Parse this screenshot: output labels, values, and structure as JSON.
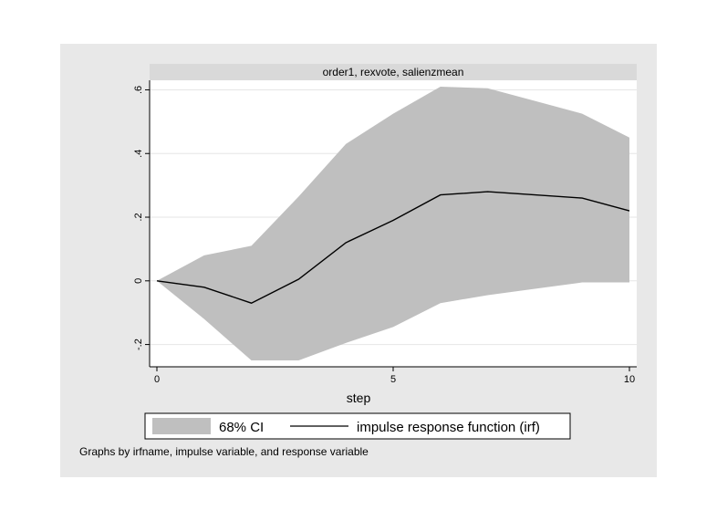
{
  "chart_data": {
    "type": "area",
    "panel_title": "order1, rexvote, salienzmean",
    "xlabel": "step",
    "ylabel": "",
    "xlim": [
      0,
      10
    ],
    "ylim": [
      -0.27,
      0.63
    ],
    "x_ticks": [
      0,
      5,
      10
    ],
    "x_tick_labels": [
      "0",
      "5",
      "10"
    ],
    "y_ticks": [
      -0.2,
      0,
      0.2,
      0.4,
      0.6
    ],
    "y_tick_labels": [
      "-.2",
      "0",
      ".2",
      ".4",
      ".6"
    ],
    "grid": "horizontal",
    "legend_position": "bottom",
    "x": [
      0,
      1,
      2,
      3,
      4,
      5,
      6,
      7,
      8,
      9,
      10
    ],
    "series": [
      {
        "name": "68% CI",
        "kind": "band",
        "color": "#bfbfbf",
        "lower": [
          0,
          -0.12,
          -0.25,
          -0.25,
          -0.195,
          -0.145,
          -0.07,
          -0.045,
          -0.025,
          -0.005,
          -0.005
        ],
        "upper": [
          0,
          0.08,
          0.11,
          0.265,
          0.43,
          0.525,
          0.61,
          0.605,
          0.565,
          0.525,
          0.45
        ]
      },
      {
        "name": "impulse response function (irf)",
        "kind": "line",
        "color": "#000000",
        "values": [
          0,
          -0.02,
          -0.07,
          0.005,
          0.12,
          0.19,
          0.27,
          0.28,
          0.27,
          0.26,
          0.22
        ]
      }
    ],
    "note": "Graphs by irfname, impulse variable, and response variable"
  },
  "colors": {
    "outer_background": "#e8e8e8",
    "plot_background": "#ffffff",
    "title_strip": "#d9d9d9",
    "band": "#bfbfbf",
    "line": "#000000",
    "grid": "#e6e6e6"
  }
}
